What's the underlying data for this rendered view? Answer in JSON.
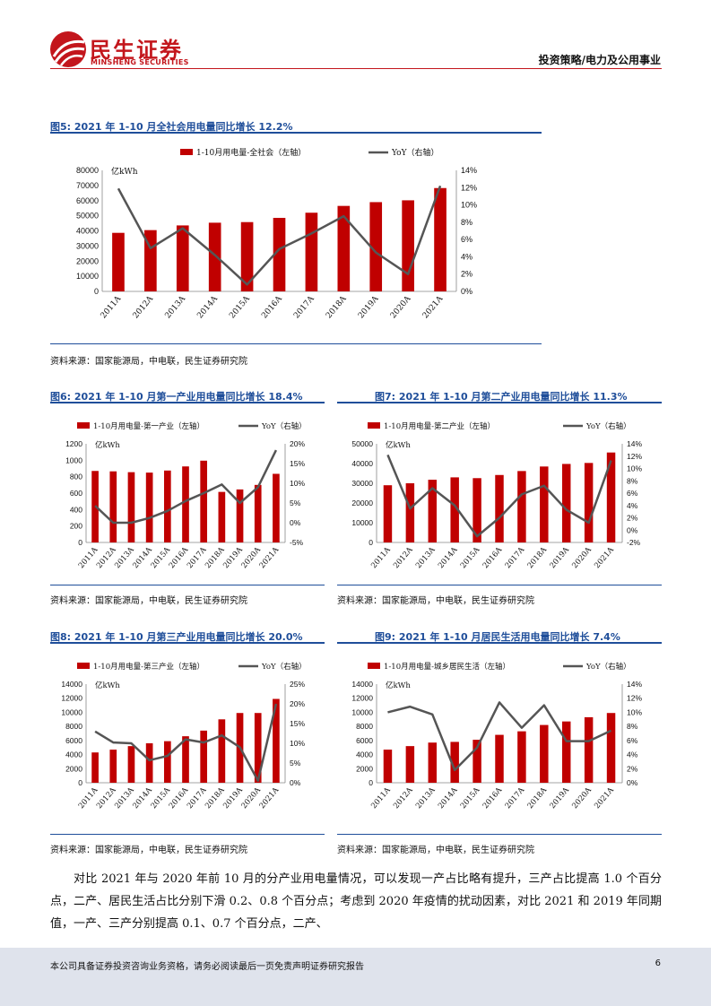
{
  "header": {
    "brand_cn": "民生证券",
    "brand_en": "MINSHENG SECURITIES",
    "report_category": "投资策略/电力及公用事业"
  },
  "figures": [
    {
      "title": "图5: 2021 年 1-10 月全社会用电量同比增长 12.2%",
      "source": "资料来源：国家能源局，中电联，民生证券研究院"
    },
    {
      "title": "图6: 2021 年 1-10 月第一产业用电量同比增长 18.4%",
      "source": "资料来源：国家能源局，中电联，民生证券研究院"
    },
    {
      "title": "图7: 2021 年 1-10 月第二产业用电量同比增长 11.3%",
      "source": "资料来源：国家能源局，中电联，民生证券研究院"
    },
    {
      "title": "图8: 2021 年 1-10 月第三产业用电量同比增长 20.0%",
      "source": "资料来源：国家能源局，中电联，民生证券研究院"
    },
    {
      "title": "图9: 2021 年 1-10 月居民生活用电量同比增长 7.4%",
      "source": "资料来源：国家能源局，中电联，民生证券研究院"
    }
  ],
  "chart_data": [
    {
      "type": "bar+line",
      "categories": [
        "2011A",
        "2012A",
        "2013A",
        "2014A",
        "2015A",
        "2016A",
        "2017A",
        "2018A",
        "2019A",
        "2020A",
        "2021A"
      ],
      "unit_label": "亿kWh",
      "series": [
        {
          "name": "1-10月用电量-全社会（左轴）",
          "type": "bar",
          "axis": "left",
          "color": "#c00000",
          "values": [
            38700,
            40500,
            43600,
            45400,
            45800,
            48600,
            52000,
            56500,
            59000,
            60200,
            68300
          ]
        },
        {
          "name": "YoY（右轴）",
          "type": "line",
          "axis": "right",
          "color": "#555555",
          "values": [
            11.9,
            5.0,
            7.3,
            4.2,
            0.8,
            4.9,
            6.7,
            8.7,
            4.5,
            2.0,
            12.2
          ]
        }
      ],
      "left_axis": {
        "min": 0,
        "max": 80000,
        "step": 10000,
        "ticks": [
          "0",
          "10000",
          "20000",
          "30000",
          "40000",
          "50000",
          "60000",
          "70000",
          "80000"
        ]
      },
      "right_axis": {
        "min": 0,
        "max": 14,
        "step": 2,
        "ticks": [
          "0%",
          "2%",
          "4%",
          "6%",
          "8%",
          "10%",
          "12%",
          "14%"
        ]
      },
      "legend_position": "top"
    },
    {
      "type": "bar+line",
      "categories": [
        "2011A",
        "2012A",
        "2013A",
        "2014A",
        "2015A",
        "2016A",
        "2017A",
        "2018A",
        "2019A",
        "2020A",
        "2021A"
      ],
      "unit_label": "亿kWh",
      "series": [
        {
          "name": "1-10月用电量-第一产业（左轴）",
          "type": "bar",
          "axis": "left",
          "color": "#c00000",
          "values": [
            870,
            865,
            855,
            850,
            875,
            925,
            995,
            615,
            645,
            700,
            835
          ]
        },
        {
          "name": "YoY（右轴）",
          "type": "line",
          "axis": "right",
          "color": "#555555",
          "values": [
            4.3,
            0.0,
            0.0,
            1.2,
            3.0,
            5.5,
            7.5,
            9.7,
            5.0,
            9.0,
            18.4
          ]
        }
      ],
      "left_axis": {
        "min": 0,
        "max": 1200,
        "step": 200,
        "ticks": [
          "0",
          "200",
          "400",
          "600",
          "800",
          "1000",
          "1200"
        ]
      },
      "right_axis": {
        "min": -5,
        "max": 20,
        "step": 5,
        "ticks": [
          "-5%",
          "0%",
          "5%",
          "10%",
          "15%",
          "20%"
        ]
      },
      "legend_position": "top"
    },
    {
      "type": "bar+line",
      "categories": [
        "2011A",
        "2012A",
        "2013A",
        "2014A",
        "2015A",
        "2016A",
        "2017A",
        "2018A",
        "2019A",
        "2020A",
        "2021A"
      ],
      "unit_label": "亿kWh",
      "series": [
        {
          "name": "1-10月用电量-第二产业（左轴）",
          "type": "bar",
          "axis": "left",
          "color": "#c00000",
          "values": [
            29000,
            30000,
            31800,
            33000,
            32600,
            34200,
            36200,
            38500,
            39800,
            40300,
            45600
          ]
        },
        {
          "name": "YoY（右轴）",
          "type": "line",
          "axis": "right",
          "color": "#555555",
          "values": [
            12.2,
            3.5,
            6.8,
            4.0,
            -1.0,
            2.0,
            5.8,
            7.2,
            3.3,
            1.2,
            11.3
          ]
        }
      ],
      "left_axis": {
        "min": 0,
        "max": 50000,
        "step": 10000,
        "ticks": [
          "0",
          "10000",
          "20000",
          "30000",
          "40000",
          "50000"
        ]
      },
      "right_axis": {
        "min": -2,
        "max": 14,
        "step": 2,
        "ticks": [
          "-2%",
          "0%",
          "2%",
          "4%",
          "6%",
          "8%",
          "10%",
          "12%",
          "14%"
        ]
      },
      "legend_position": "top"
    },
    {
      "type": "bar+line",
      "categories": [
        "2011A",
        "2012A",
        "2013A",
        "2014A",
        "2015A",
        "2016A",
        "2017A",
        "2018A",
        "2019A",
        "2020A",
        "2021A"
      ],
      "unit_label": "亿kWh",
      "series": [
        {
          "name": "1-10月用电量-第三产业（左轴）",
          "type": "bar",
          "axis": "left",
          "color": "#c00000",
          "values": [
            4300,
            4700,
            5200,
            5600,
            5900,
            6600,
            7400,
            9000,
            9900,
            9900,
            11900
          ]
        },
        {
          "name": "YoY（右轴）",
          "type": "line",
          "axis": "right",
          "color": "#555555",
          "values": [
            13.0,
            10.2,
            10.0,
            5.7,
            6.8,
            11.0,
            10.2,
            12.0,
            9.0,
            0.5,
            20.0
          ]
        }
      ],
      "left_axis": {
        "min": 0,
        "max": 14000,
        "step": 2000,
        "ticks": [
          "0",
          "2000",
          "4000",
          "6000",
          "8000",
          "10000",
          "12000",
          "14000"
        ]
      },
      "right_axis": {
        "min": 0,
        "max": 25,
        "step": 5,
        "ticks": [
          "0%",
          "5%",
          "10%",
          "15%",
          "20%",
          "25%"
        ]
      },
      "legend_position": "top"
    },
    {
      "type": "bar+line",
      "categories": [
        "2011A",
        "2012A",
        "2013A",
        "2014A",
        "2015A",
        "2016A",
        "2017A",
        "2018A",
        "2019A",
        "2020A",
        "2021A"
      ],
      "unit_label": "亿kWh",
      "series": [
        {
          "name": "1-10月用电量-城乡居民生活（左轴）",
          "type": "bar",
          "axis": "left",
          "color": "#c00000",
          "values": [
            4700,
            5200,
            5700,
            5800,
            6100,
            6800,
            7300,
            8200,
            8700,
            9300,
            9900
          ]
        },
        {
          "name": "YoY（右轴）",
          "type": "line",
          "axis": "right",
          "color": "#555555",
          "values": [
            10.0,
            10.8,
            9.7,
            1.8,
            5.0,
            11.4,
            7.8,
            11.0,
            5.9,
            5.9,
            7.4
          ]
        }
      ],
      "left_axis": {
        "min": 0,
        "max": 14000,
        "step": 2000,
        "ticks": [
          "0",
          "2000",
          "4000",
          "6000",
          "8000",
          "10000",
          "12000",
          "14000"
        ]
      },
      "right_axis": {
        "min": 0,
        "max": 14,
        "step": 2,
        "ticks": [
          "0%",
          "2%",
          "4%",
          "6%",
          "8%",
          "10%",
          "12%",
          "14%"
        ]
      },
      "legend_position": "top"
    }
  ],
  "body": {
    "paragraph": "对比 2021 年与 2020 年前 10 月的分产业用电量情况，可以发现一产占比略有提升，三产占比提高 1.0 个百分点，二产、居民生活占比分别下滑 0.2、0.8 个百分点；考虑到 2020 年疫情的扰动因素，对比 2021 和 2019 年同期值，一产、三产分别提高 0.1、0.7 个百分点，二产、"
  },
  "footer": {
    "disclaimer": "本公司具备证券投资咨询业务资格，请务必阅读最后一页免责声明证券研究报告",
    "page_number": "6"
  },
  "colors": {
    "brand_red": "#c3161c",
    "title_blue": "#1f4e9a",
    "bar_red": "#c00000",
    "line_gray": "#555555",
    "footer_bg": "#dfe3ec"
  }
}
